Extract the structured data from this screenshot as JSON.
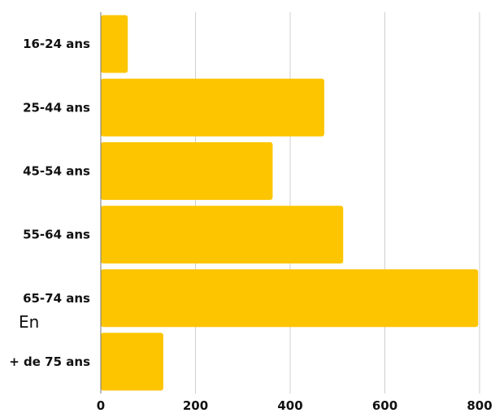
{
  "chart_data": {
    "type": "bar",
    "orientation": "horizontal",
    "categories": [
      "16-24 ans",
      "25-44 ans",
      "45-54 ans",
      "55-64 ans",
      "65-74 ans",
      "+ de 75 ans"
    ],
    "values": [
      57,
      472,
      363,
      512,
      797,
      132
    ],
    "xlim": [
      0,
      800
    ],
    "xticks": [
      "0",
      "200",
      "400",
      "600",
      "800"
    ],
    "grid": "vertical",
    "bar_color": "#fcc500",
    "annotation": "En"
  }
}
